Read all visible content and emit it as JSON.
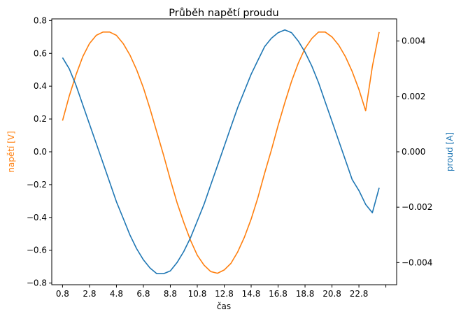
{
  "chart_data": {
    "type": "line",
    "title": "Průběh napětí proudu",
    "xlabel": "čas",
    "ylabel_left": "napětí [V]",
    "ylabel_right": "proud [A]",
    "grid": false,
    "legend": "none",
    "x_ticks": [
      0.8,
      2.8,
      4.8,
      6.8,
      8.8,
      10.8,
      12.8,
      14.8,
      16.8,
      18.8,
      20.8,
      22.8
    ],
    "x_tick_labels": [
      "0.8",
      "2.8",
      "4.8",
      "6.8",
      "8.8",
      "10.8",
      "12.8",
      "14.8",
      "16.8",
      "18.8",
      "20.8",
      "22.8",
      ""
    ],
    "x_extra_tick": 24.8,
    "xlim": [
      0.0,
      25.6
    ],
    "y_left": {
      "lim": [
        -0.81,
        0.81
      ],
      "ticks": [
        -0.8,
        -0.6,
        -0.4,
        -0.2,
        0.0,
        0.2,
        0.4,
        0.6,
        0.8
      ],
      "tick_labels": [
        "−0.8",
        "−0.6",
        "−0.4",
        "−0.2",
        "0.0",
        "0.2",
        "0.4",
        "0.6",
        "0.8"
      ],
      "color": "#ff7f0e"
    },
    "y_right": {
      "lim": [
        -0.0048,
        0.0048
      ],
      "ticks": [
        -0.004,
        -0.002,
        0.0,
        0.002,
        0.004
      ],
      "tick_labels": [
        "−0.004",
        "−0.002",
        "0.000",
        "0.002",
        "0.004"
      ],
      "color": "#1f77b4"
    },
    "series": [
      {
        "axis": "left",
        "color": "#ff7f0e",
        "x": [
          0.8,
          1.3,
          1.8,
          2.3,
          2.8,
          3.3,
          3.8,
          4.3,
          4.8,
          5.3,
          5.8,
          6.3,
          6.8,
          7.3,
          7.8,
          8.3,
          8.8,
          9.3,
          9.8,
          10.3,
          10.8,
          11.3,
          11.8,
          12.3,
          12.8,
          13.3,
          13.8,
          14.3,
          14.8,
          15.3,
          15.8,
          16.3,
          16.8,
          17.3,
          17.8,
          18.3,
          18.8,
          19.3,
          19.8,
          20.3,
          20.8,
          21.3,
          21.8,
          22.3,
          22.8,
          23.3,
          23.8,
          24.3
        ],
        "values": [
          0.19,
          0.34,
          0.47,
          0.58,
          0.66,
          0.71,
          0.73,
          0.73,
          0.71,
          0.66,
          0.59,
          0.5,
          0.39,
          0.26,
          0.12,
          -0.02,
          -0.17,
          -0.31,
          -0.43,
          -0.54,
          -0.63,
          -0.69,
          -0.73,
          -0.74,
          -0.72,
          -0.68,
          -0.61,
          -0.52,
          -0.41,
          -0.28,
          -0.13,
          0.01,
          0.16,
          0.3,
          0.43,
          0.54,
          0.63,
          0.69,
          0.73,
          0.73,
          0.7,
          0.65,
          0.58,
          0.49,
          0.38,
          0.25,
          0.52,
          0.73
        ]
      },
      {
        "axis": "right",
        "color": "#1f77b4",
        "x": [
          0.8,
          1.3,
          1.8,
          2.3,
          2.8,
          3.3,
          3.8,
          4.3,
          4.8,
          5.3,
          5.8,
          6.3,
          6.8,
          7.3,
          7.8,
          8.3,
          8.8,
          9.3,
          9.8,
          10.3,
          10.8,
          11.3,
          11.8,
          12.3,
          12.8,
          13.3,
          13.8,
          14.3,
          14.8,
          15.3,
          15.8,
          16.3,
          16.8,
          17.3,
          17.8,
          18.3,
          18.8,
          19.3,
          19.8,
          20.3,
          20.8,
          21.3,
          21.8,
          22.3,
          22.8,
          23.3,
          23.8,
          24.3
        ],
        "values": [
          0.0034,
          0.003,
          0.0024,
          0.0017,
          0.001,
          0.0003,
          -0.0004,
          -0.0011,
          -0.0018,
          -0.0024,
          -0.003,
          -0.0035,
          -0.0039,
          -0.0042,
          -0.0044,
          -0.0044,
          -0.0043,
          -0.004,
          -0.0036,
          -0.0031,
          -0.0025,
          -0.0019,
          -0.0012,
          -0.0005,
          0.0002,
          0.0009,
          0.0016,
          0.0022,
          0.0028,
          0.0033,
          0.0038,
          0.0041,
          0.0043,
          0.0044,
          0.0043,
          0.004,
          0.0036,
          0.0031,
          0.0025,
          0.0018,
          0.0011,
          0.0004,
          -0.0003,
          -0.001,
          -0.0014,
          -0.0019,
          -0.0022,
          -0.0013
        ]
      }
    ]
  }
}
